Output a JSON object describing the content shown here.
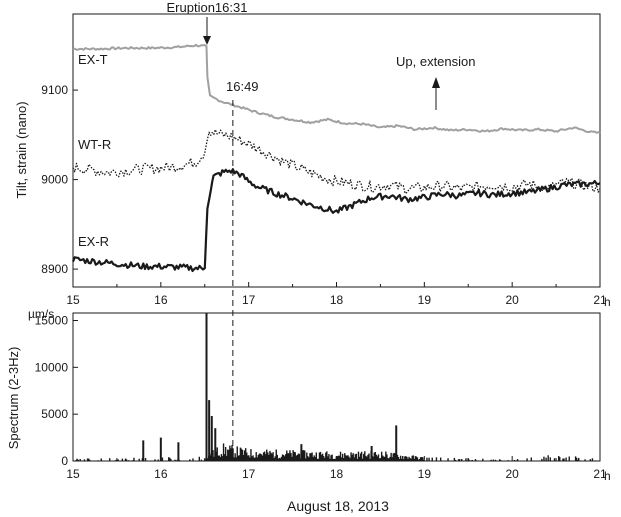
{
  "xlabel": "August 18, 2013",
  "chart_data": [
    {
      "type": "line",
      "ylabel": "Tilt, strain (nano)",
      "xlim": [
        15,
        21
      ],
      "ylim": [
        8880,
        9185
      ],
      "x_ticks": [
        15,
        16,
        17,
        18,
        19,
        20,
        21
      ],
      "x_tick_labels": [
        "15",
        "16",
        "17",
        "18",
        "19",
        "20",
        "21"
      ],
      "x_unit": "h",
      "y_ticks": [
        8900,
        9000,
        9100
      ],
      "y_tick_labels": [
        "8900",
        "9000",
        "9100"
      ],
      "series": [
        {
          "name": "EX-T",
          "color": "#a0a0a0",
          "style": "solid",
          "x": [
            15.0,
            15.3,
            15.6,
            15.9,
            16.2,
            16.4,
            16.52,
            16.53,
            16.56,
            16.7,
            16.9,
            17.1,
            17.3,
            17.5,
            17.7,
            17.9,
            18.1,
            18.3,
            18.5,
            18.7,
            18.9,
            19.1,
            19.3,
            19.5,
            19.7,
            19.9,
            20.1,
            20.3,
            20.5,
            20.7,
            20.9,
            21.0
          ],
          "y": [
            9146,
            9146,
            9147,
            9147,
            9148,
            9150,
            9149,
            9115,
            9093,
            9087,
            9081,
            9075,
            9070,
            9067,
            9064,
            9067,
            9063,
            9062,
            9058,
            9060,
            9056,
            9058,
            9055,
            9056,
            9054,
            9057,
            9055,
            9056,
            9054,
            9058,
            9053,
            9052
          ]
        },
        {
          "name": "WT-R",
          "color": "#1a1a1a",
          "style": "dotted",
          "x": [
            15.0,
            15.2,
            15.4,
            15.6,
            15.8,
            16.0,
            16.2,
            16.4,
            16.5,
            16.55,
            16.62,
            16.7,
            16.8,
            16.9,
            17.0,
            17.2,
            17.4,
            17.6,
            17.8,
            18.0,
            18.2,
            18.4,
            18.6,
            18.8,
            19.0,
            19.2,
            19.4,
            19.6,
            19.8,
            20.0,
            20.2,
            20.4,
            20.6,
            20.8,
            21.0
          ],
          "y": [
            9014,
            9011,
            9008,
            9010,
            9012,
            9013,
            9015,
            9020,
            9030,
            9055,
            9052,
            9050,
            9048,
            9044,
            9040,
            9030,
            9020,
            9012,
            9004,
            8998,
            8995,
            8992,
            8994,
            8990,
            8991,
            8993,
            8990,
            8992,
            8994,
            8992,
            8995,
            8990,
            8997,
            8994,
            8990
          ]
        },
        {
          "name": "EX-R",
          "color": "#1a1a1a",
          "style": "solid",
          "x": [
            15.0,
            15.2,
            15.4,
            15.6,
            15.8,
            16.0,
            16.2,
            16.4,
            16.5,
            16.53,
            16.57,
            16.6,
            16.7,
            16.8,
            16.9,
            17.0,
            17.1,
            17.3,
            17.5,
            17.7,
            17.9,
            18.0,
            18.1,
            18.2,
            18.4,
            18.6,
            18.8,
            19.0,
            19.2,
            19.4,
            19.6,
            19.8,
            20.0,
            20.2,
            20.4,
            20.6,
            20.8,
            21.0
          ],
          "y": [
            8911,
            8909,
            8907,
            8905,
            8903,
            8903,
            8902,
            8901,
            8901,
            8970,
            8990,
            9003,
            9008,
            9010,
            9006,
            8998,
            8992,
            8985,
            8979,
            8972,
            8967,
            8964,
            8968,
            8972,
            8980,
            8982,
            8978,
            8980,
            8984,
            8982,
            8985,
            8983,
            8985,
            8986,
            8990,
            8994,
            8995,
            8996
          ]
        }
      ],
      "annotations": [
        {
          "text": "Eruption16:31",
          "x": 16.52,
          "kind": "arrow-down"
        },
        {
          "text": "16:49",
          "x": 16.82,
          "kind": "dashed-line"
        },
        {
          "text": "Up, extension",
          "kind": "arrow-up"
        }
      ],
      "grid": false,
      "legend": "inline-labels"
    },
    {
      "type": "bar",
      "ylabel": "Spectrum (2-3Hz)",
      "unit_label": "µm/s",
      "xlim": [
        15,
        21
      ],
      "ylim": [
        0,
        15800
      ],
      "x_ticks": [
        15,
        16,
        17,
        18,
        19,
        20,
        21
      ],
      "x_tick_labels": [
        "15",
        "16",
        "17",
        "18",
        "19",
        "20",
        "21"
      ],
      "x_unit": "h",
      "y_ticks": [
        0,
        5000,
        10000,
        15000
      ],
      "y_tick_labels": [
        "0",
        "5000",
        "10000",
        "15000"
      ],
      "color": "#1a1a1a",
      "notable_bars": [
        {
          "x": 16.52,
          "value": 15800
        },
        {
          "x": 16.55,
          "value": 6500
        },
        {
          "x": 16.58,
          "value": 4800
        },
        {
          "x": 16.62,
          "value": 3500
        },
        {
          "x": 18.68,
          "value": 3800
        },
        {
          "x": 16.0,
          "value": 2500
        },
        {
          "x": 15.8,
          "value": 2200
        },
        {
          "x": 16.2,
          "value": 2000
        },
        {
          "x": 17.6,
          "value": 1800
        },
        {
          "x": 18.4,
          "value": 1600
        }
      ],
      "background_level": [
        {
          "x": 15.0,
          "value": 200
        },
        {
          "x": 16.0,
          "value": 250
        },
        {
          "x": 16.5,
          "value": 400
        },
        {
          "x": 16.7,
          "value": 1300
        },
        {
          "x": 17.0,
          "value": 900
        },
        {
          "x": 17.5,
          "value": 800
        },
        {
          "x": 18.0,
          "value": 700
        },
        {
          "x": 18.5,
          "value": 750
        },
        {
          "x": 19.0,
          "value": 300
        },
        {
          "x": 20.0,
          "value": 100
        },
        {
          "x": 20.4,
          "value": 450
        },
        {
          "x": 20.7,
          "value": 350
        },
        {
          "x": 21.0,
          "value": 200
        }
      ]
    }
  ]
}
